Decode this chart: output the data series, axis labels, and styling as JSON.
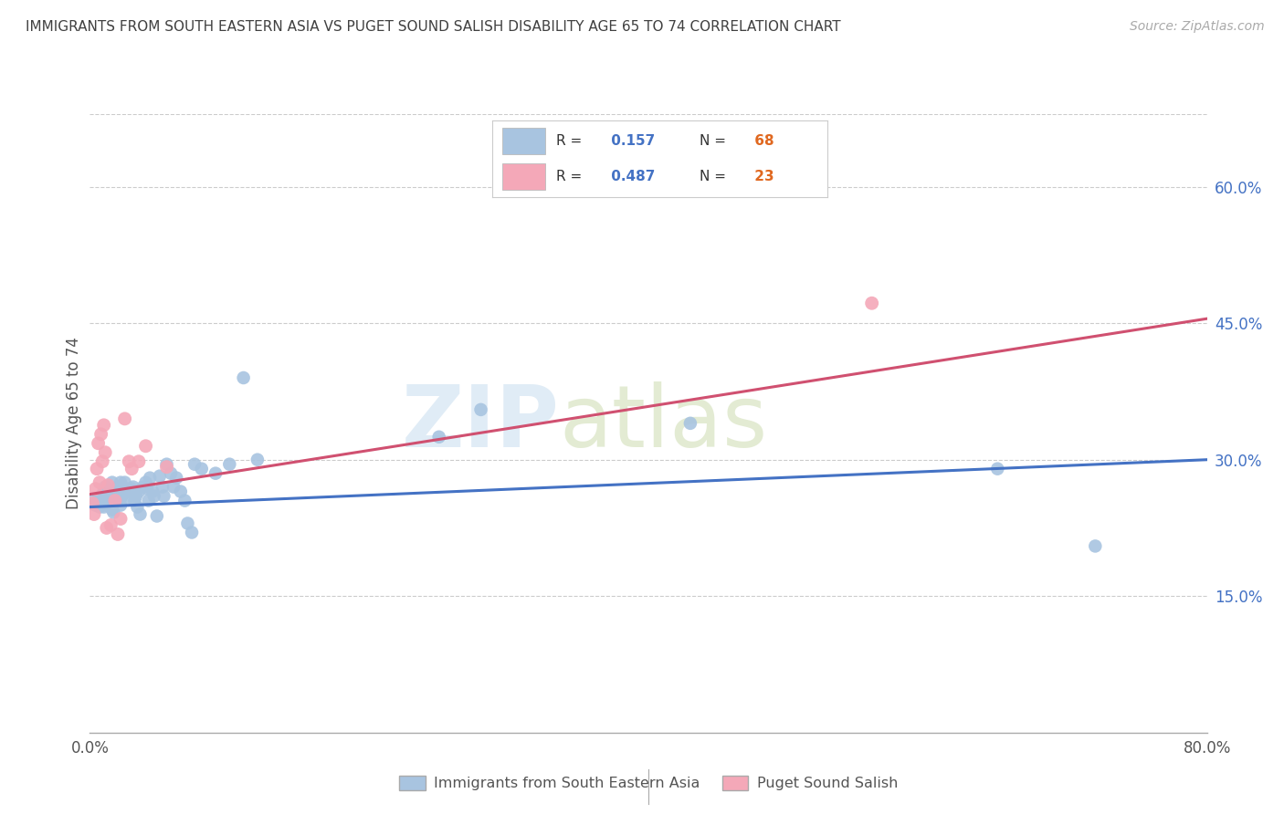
{
  "title": "IMMIGRANTS FROM SOUTH EASTERN ASIA VS PUGET SOUND SALISH DISABILITY AGE 65 TO 74 CORRELATION CHART",
  "source": "Source: ZipAtlas.com",
  "ylabel": "Disability Age 65 to 74",
  "legend_bottom": [
    "Immigrants from South Eastern Asia",
    "Puget Sound Salish"
  ],
  "blue_R": "0.157",
  "blue_N": "68",
  "pink_R": "0.487",
  "pink_N": "23",
  "blue_color": "#a8c4e0",
  "pink_color": "#f4a8b8",
  "blue_line_color": "#4472c4",
  "pink_line_color": "#d05070",
  "title_color": "#404040",
  "tick_color_blue": "#4472c4",
  "N_color": "#e06820",
  "xmin": 0.0,
  "xmax": 0.8,
  "ymin": 0.0,
  "ymax": 0.68,
  "blue_line_x": [
    0.0,
    0.8
  ],
  "blue_line_y": [
    0.248,
    0.3
  ],
  "pink_line_x": [
    0.0,
    0.8
  ],
  "pink_line_y": [
    0.262,
    0.455
  ],
  "blue_points_x": [
    0.003,
    0.004,
    0.005,
    0.006,
    0.007,
    0.008,
    0.009,
    0.01,
    0.01,
    0.011,
    0.012,
    0.012,
    0.013,
    0.014,
    0.015,
    0.015,
    0.016,
    0.016,
    0.017,
    0.017,
    0.018,
    0.02,
    0.02,
    0.021,
    0.022,
    0.022,
    0.023,
    0.025,
    0.026,
    0.027,
    0.028,
    0.03,
    0.031,
    0.032,
    0.033,
    0.034,
    0.035,
    0.036,
    0.038,
    0.04,
    0.041,
    0.042,
    0.043,
    0.045,
    0.046,
    0.048,
    0.05,
    0.052,
    0.053,
    0.055,
    0.058,
    0.06,
    0.062,
    0.065,
    0.068,
    0.07,
    0.073,
    0.075,
    0.08,
    0.09,
    0.1,
    0.11,
    0.12,
    0.25,
    0.28,
    0.43,
    0.65,
    0.72
  ],
  "blue_points_y": [
    0.255,
    0.25,
    0.252,
    0.258,
    0.248,
    0.26,
    0.255,
    0.265,
    0.248,
    0.27,
    0.258,
    0.25,
    0.268,
    0.252,
    0.252,
    0.262,
    0.275,
    0.245,
    0.258,
    0.242,
    0.258,
    0.27,
    0.255,
    0.265,
    0.275,
    0.25,
    0.26,
    0.275,
    0.268,
    0.258,
    0.265,
    0.268,
    0.27,
    0.255,
    0.26,
    0.248,
    0.265,
    0.24,
    0.27,
    0.275,
    0.268,
    0.255,
    0.28,
    0.265,
    0.26,
    0.238,
    0.282,
    0.27,
    0.26,
    0.295,
    0.285,
    0.27,
    0.28,
    0.265,
    0.255,
    0.23,
    0.22,
    0.295,
    0.29,
    0.285,
    0.295,
    0.39,
    0.3,
    0.325,
    0.355,
    0.34,
    0.29,
    0.205
  ],
  "pink_points_x": [
    0.002,
    0.003,
    0.004,
    0.005,
    0.006,
    0.007,
    0.008,
    0.009,
    0.01,
    0.011,
    0.012,
    0.013,
    0.015,
    0.018,
    0.02,
    0.022,
    0.025,
    0.028,
    0.03,
    0.035,
    0.04,
    0.055,
    0.56
  ],
  "pink_points_y": [
    0.252,
    0.24,
    0.268,
    0.29,
    0.318,
    0.275,
    0.328,
    0.298,
    0.338,
    0.308,
    0.225,
    0.272,
    0.228,
    0.255,
    0.218,
    0.235,
    0.345,
    0.298,
    0.29,
    0.298,
    0.315,
    0.292,
    0.472
  ]
}
